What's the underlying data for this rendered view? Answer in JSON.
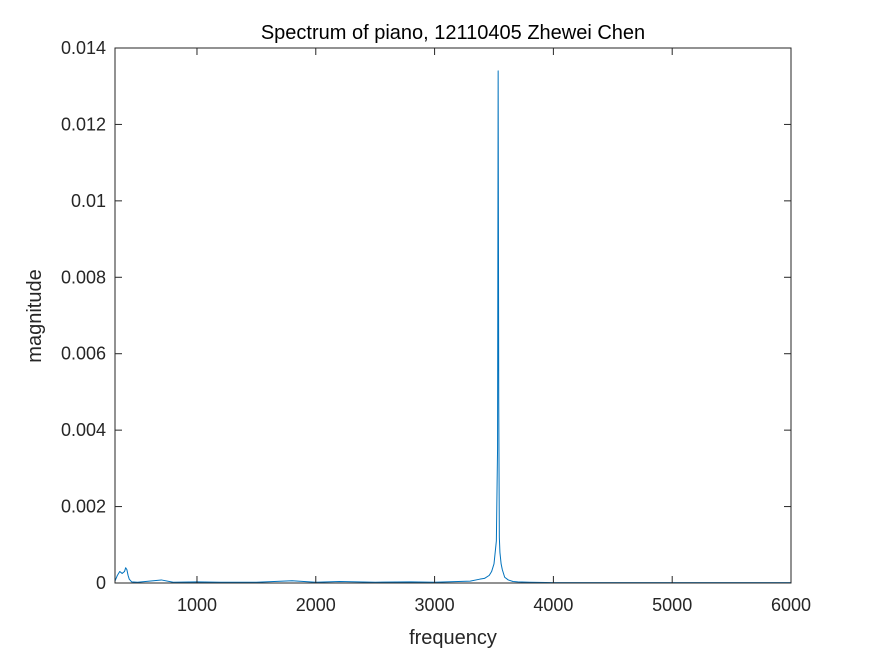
{
  "chart_data": {
    "type": "line",
    "title": "Spectrum of piano, 12110405 Zhewei Chen",
    "xlabel": "frequency",
    "ylabel": "magnitude",
    "xlim": [
      310,
      6000
    ],
    "ylim": [
      0,
      0.014
    ],
    "xticks": [
      1000,
      2000,
      3000,
      4000,
      5000,
      6000
    ],
    "xtick_labels": [
      "1000",
      "2000",
      "3000",
      "4000",
      "5000",
      "6000"
    ],
    "yticks": [
      0,
      0.002,
      0.004,
      0.006,
      0.008,
      0.01,
      0.012,
      0.014
    ],
    "ytick_labels": [
      "0",
      "0.002",
      "0.004",
      "0.006",
      "0.008",
      "0.01",
      "0.012",
      "0.014"
    ],
    "grid": false,
    "box": true,
    "series": [
      {
        "color": "#0072BD",
        "x": [
          310,
          330,
          350,
          370,
          390,
          400,
          410,
          420,
          430,
          450,
          500,
          600,
          700,
          800,
          1000,
          1200,
          1500,
          1800,
          2000,
          2200,
          2500,
          2800,
          3000,
          3200,
          3300,
          3380,
          3420,
          3460,
          3480,
          3500,
          3510,
          3520,
          3530,
          3535,
          3540,
          3545,
          3550,
          3560,
          3570,
          3590,
          3620,
          3660,
          3700,
          3800,
          4000,
          4500,
          5000,
          5500,
          6000
        ],
        "y": [
          5e-05,
          0.0002,
          0.0003,
          0.00025,
          0.0003,
          0.0004,
          0.00035,
          0.0002,
          0.0001,
          3e-05,
          2e-05,
          5e-05,
          8e-05,
          2e-05,
          3e-05,
          2e-05,
          2e-05,
          6e-05,
          2e-05,
          4e-05,
          2e-05,
          3e-05,
          2e-05,
          4e-05,
          5e-05,
          0.0001,
          0.00012,
          0.0002,
          0.0003,
          0.0005,
          0.0008,
          0.0011,
          0.0035,
          0.0134,
          0.0048,
          0.0012,
          0.0008,
          0.0005,
          0.00035,
          0.00015,
          8e-05,
          4e-05,
          3e-05,
          2e-05,
          1e-05,
          1e-05,
          1e-05,
          1e-05,
          1e-05
        ]
      }
    ]
  }
}
